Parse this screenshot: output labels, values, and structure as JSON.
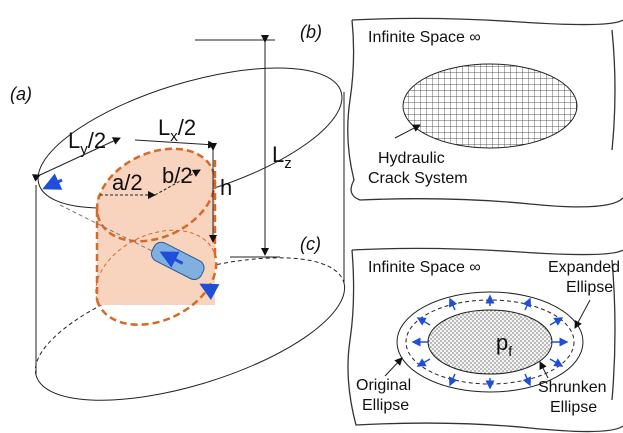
{
  "panel_a": {
    "label": "(a)",
    "ly": {
      "base": "L",
      "sub": "y",
      "rest": "/2"
    },
    "lx": {
      "base": "L",
      "sub": "x",
      "rest": "/2"
    },
    "a": "a/2",
    "b": "b/2",
    "h": "h",
    "lz": {
      "base": "L",
      "sub": "z"
    }
  },
  "panel_b": {
    "label": "(b)",
    "space": "Infinite Space ∞",
    "crack": [
      "Hydraulic",
      "Crack System"
    ]
  },
  "panel_c": {
    "label": "(c)",
    "space": "Infinite Space ∞",
    "expanded": [
      "Expanded",
      "Ellipse"
    ],
    "pressure": {
      "base": "p",
      "sub": "f"
    },
    "original": [
      "Original",
      "Ellipse"
    ],
    "shrunken": [
      "Shrunken",
      "Ellipse"
    ]
  }
}
